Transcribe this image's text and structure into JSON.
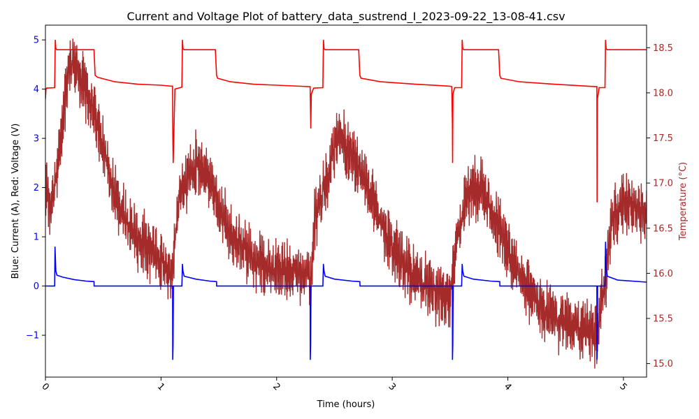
{
  "chart_data": {
    "type": "line",
    "title": "Current and Voltage Plot of battery_data_sustrend_I_2023-09-22_13-08-41.csv",
    "xlabel": "Time (hours)",
    "ylabel": "Blue: Current (A), Red: Voltage (V)",
    "y2label": "Temperature (°C)",
    "xlim": [
      0,
      5.2
    ],
    "ylim": [
      -1.85,
      5.3
    ],
    "y2lim": [
      14.85,
      18.75
    ],
    "xticks": [
      0,
      1,
      2,
      3,
      4,
      5
    ],
    "xtick_labels": [
      "0",
      "1",
      "2",
      "3",
      "4",
      "5"
    ],
    "yticks": [
      -1,
      0,
      1,
      2,
      3,
      4,
      5
    ],
    "ytick_labels": [
      "−1",
      "0",
      "1",
      "2",
      "3",
      "4",
      "5"
    ],
    "y2ticks": [
      15.0,
      15.5,
      16.0,
      16.5,
      17.0,
      17.5,
      18.0,
      18.5
    ],
    "y2tick_labels": [
      "15.0",
      "15.5",
      "16.0",
      "16.5",
      "17.0",
      "17.5",
      "18.0",
      "18.5"
    ],
    "grid": false,
    "legend": "none",
    "colors": {
      "current": "#0000ff",
      "voltage": "#ff0000",
      "temperature": "#a52a2a",
      "left_ticks": "#0000ff",
      "right_ticks": "#a52a2a"
    },
    "series": [
      {
        "axis": "left",
        "x": [
          0,
          0.08,
          0.083,
          0.09,
          0.1,
          0.15,
          0.25,
          0.35,
          0.42,
          0.421,
          0.6,
          0.8,
          1.0,
          1.1,
          1.101,
          1.104,
          1.107,
          1.18,
          1.185,
          1.19,
          1.2,
          1.3,
          1.42,
          1.48,
          1.481,
          1.8,
          2.0,
          2.29,
          2.291,
          2.294,
          2.297,
          2.4,
          2.405,
          2.41,
          2.42,
          2.5,
          2.65,
          2.72,
          2.721,
          3.0,
          3.3,
          3.52,
          3.521,
          3.524,
          3.527,
          3.6,
          3.605,
          3.61,
          3.62,
          3.7,
          3.85,
          3.93,
          3.931,
          4.3,
          4.6,
          4.77,
          4.771,
          4.774,
          4.777,
          4.84,
          4.845,
          4.85,
          4.86,
          4.95,
          5.2
        ],
        "y": [
          0,
          0,
          0.8,
          0.3,
          0.22,
          0.18,
          0.13,
          0.1,
          0.09,
          0,
          0,
          0,
          0,
          0,
          -1.5,
          -1.2,
          0,
          0,
          0.45,
          0.3,
          0.2,
          0.14,
          0.1,
          0.09,
          0,
          0,
          0,
          0,
          -1.5,
          -1.2,
          0,
          0,
          0.45,
          0.3,
          0.2,
          0.14,
          0.1,
          0.09,
          0,
          0,
          0,
          0,
          -1.5,
          -1.2,
          0,
          0,
          0.45,
          0.3,
          0.2,
          0.14,
          0.1,
          0.09,
          0,
          0,
          0,
          0,
          -1.5,
          -1.2,
          0,
          0,
          0.9,
          0.4,
          0.2,
          0.12,
          0.08
        ]
      },
      {
        "axis": "left",
        "x": [
          0,
          0.005,
          0.01,
          0.08,
          0.085,
          0.09,
          0.1,
          0.42,
          0.43,
          0.45,
          0.6,
          0.8,
          1.0,
          1.09,
          1.1,
          1.102,
          1.105,
          1.12,
          1.18,
          1.185,
          1.19,
          1.2,
          1.47,
          1.48,
          1.49,
          1.6,
          1.8,
          2.0,
          2.29,
          2.295,
          2.3,
          2.32,
          2.4,
          2.405,
          2.41,
          2.42,
          2.71,
          2.72,
          2.73,
          2.9,
          3.2,
          3.5,
          3.515,
          3.52,
          3.522,
          3.525,
          3.54,
          3.6,
          3.605,
          3.61,
          3.62,
          3.92,
          3.93,
          3.94,
          4.1,
          4.4,
          4.76,
          4.77,
          4.772,
          4.775,
          4.79,
          4.84,
          4.845,
          4.85,
          4.86,
          5.2
        ],
        "y": [
          3.8,
          4.0,
          4.02,
          4.03,
          5.0,
          4.82,
          4.8,
          4.8,
          4.28,
          4.24,
          4.15,
          4.1,
          4.08,
          4.06,
          4.06,
          3.0,
          2.5,
          4.0,
          4.04,
          5.0,
          4.82,
          4.8,
          4.8,
          4.28,
          4.22,
          4.15,
          4.1,
          4.08,
          4.05,
          3.2,
          3.9,
          4.02,
          4.03,
          5.0,
          4.82,
          4.8,
          4.8,
          4.28,
          4.22,
          4.15,
          4.1,
          4.06,
          4.05,
          3.3,
          2.5,
          3.9,
          4.03,
          4.03,
          5.0,
          4.82,
          4.8,
          4.8,
          4.28,
          4.22,
          4.15,
          4.1,
          4.05,
          4.05,
          1.7,
          3.8,
          4.03,
          4.03,
          5.0,
          4.82,
          4.8,
          4.8
        ]
      },
      {
        "axis": "right",
        "x": [
          0,
          0.05,
          0.1,
          0.15,
          0.2,
          0.25,
          0.3,
          0.35,
          0.4,
          0.45,
          0.5,
          0.55,
          0.6,
          0.7,
          0.8,
          0.9,
          1.0,
          1.05,
          1.1,
          1.13,
          1.15,
          1.2,
          1.25,
          1.3,
          1.35,
          1.4,
          1.45,
          1.5,
          1.6,
          1.7,
          1.8,
          1.9,
          2.0,
          2.1,
          2.2,
          2.3,
          2.33,
          2.4,
          2.45,
          2.5,
          2.55,
          2.6,
          2.65,
          2.7,
          2.8,
          2.9,
          3.0,
          3.1,
          3.2,
          3.3,
          3.4,
          3.5,
          3.55,
          3.6,
          3.65,
          3.7,
          3.75,
          3.8,
          3.85,
          3.9,
          4.0,
          4.1,
          4.2,
          4.3,
          4.4,
          4.5,
          4.6,
          4.7,
          4.77,
          4.8,
          4.85,
          4.9,
          5.0,
          5.1,
          5.2
        ],
        "y": [
          17.0,
          16.7,
          17.1,
          17.7,
          18.3,
          18.35,
          18.2,
          18.0,
          17.9,
          17.6,
          17.4,
          17.1,
          16.9,
          16.6,
          16.4,
          16.25,
          16.15,
          16.05,
          15.95,
          16.5,
          16.8,
          16.95,
          17.1,
          17.2,
          17.2,
          17.1,
          16.95,
          16.7,
          16.45,
          16.3,
          16.15,
          16.05,
          16.05,
          16.05,
          16.0,
          15.95,
          16.6,
          16.9,
          17.1,
          17.4,
          17.5,
          17.4,
          17.3,
          17.2,
          16.9,
          16.55,
          16.3,
          16.1,
          15.95,
          15.85,
          15.8,
          15.7,
          16.3,
          16.6,
          16.85,
          16.95,
          16.95,
          16.85,
          16.7,
          16.55,
          16.25,
          16.0,
          15.75,
          15.6,
          15.5,
          15.45,
          15.4,
          15.35,
          15.3,
          15.6,
          16.0,
          16.6,
          16.8,
          16.75,
          16.7
        ]
      }
    ]
  }
}
